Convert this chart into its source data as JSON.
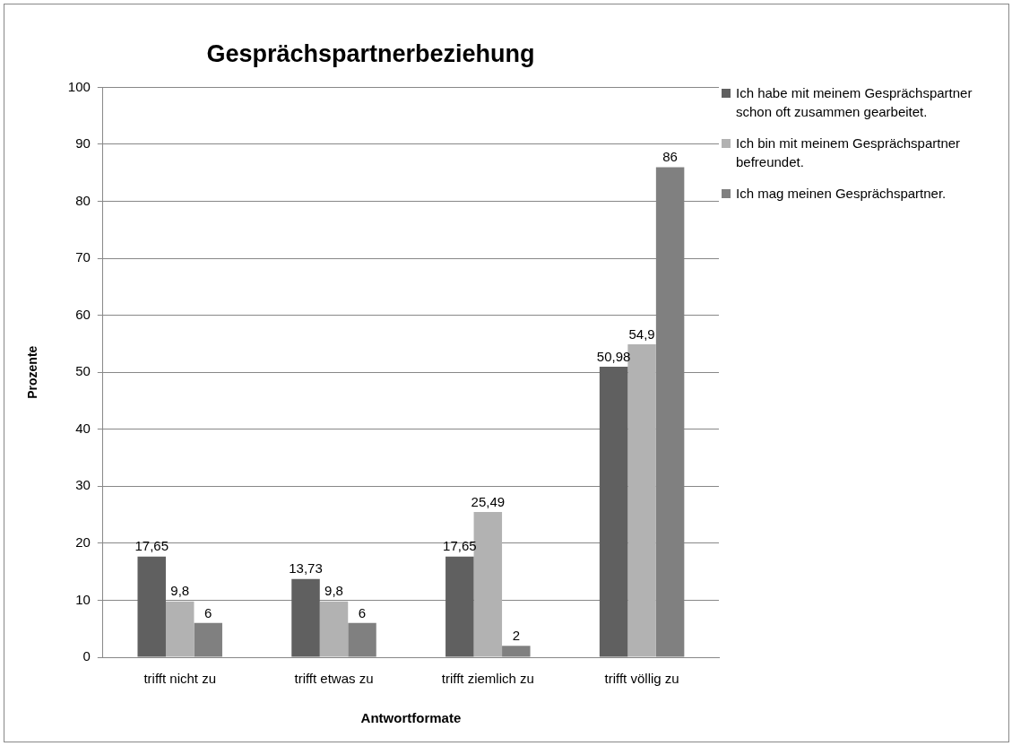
{
  "chart_data": {
    "type": "bar",
    "title": "Gesprächspartnerbeziehung",
    "xlabel": "Antwortformate",
    "ylabel": "Prozente",
    "categories": [
      "trifft nicht zu",
      "trifft etwas zu",
      "trifft ziemlich zu",
      "trifft völlig zu"
    ],
    "series": [
      {
        "name": "Ich habe mit meinem Gesprächspartner schon oft zusammen gearbeitet.",
        "color": "#606060",
        "values": [
          17.65,
          13.73,
          17.65,
          50.98
        ],
        "value_labels": [
          "17,65",
          "13,73",
          "17,65",
          "50,98"
        ]
      },
      {
        "name": "Ich bin mit meinem Gesprächspartner befreundet.",
        "color": "#b2b2b2",
        "values": [
          9.8,
          9.8,
          25.49,
          54.9
        ],
        "value_labels": [
          "9,8",
          "9,8",
          "25,49",
          "54,9"
        ]
      },
      {
        "name": "Ich mag meinen Gesprächspartner.",
        "color": "#808080",
        "values": [
          6,
          6,
          2,
          86
        ],
        "value_labels": [
          "6",
          "6",
          "2",
          "86"
        ]
      }
    ],
    "ylim": [
      0,
      100
    ],
    "yticks": [
      0,
      10,
      20,
      30,
      40,
      50,
      60,
      70,
      80,
      90,
      100
    ],
    "grid": "y",
    "legend": "right"
  }
}
